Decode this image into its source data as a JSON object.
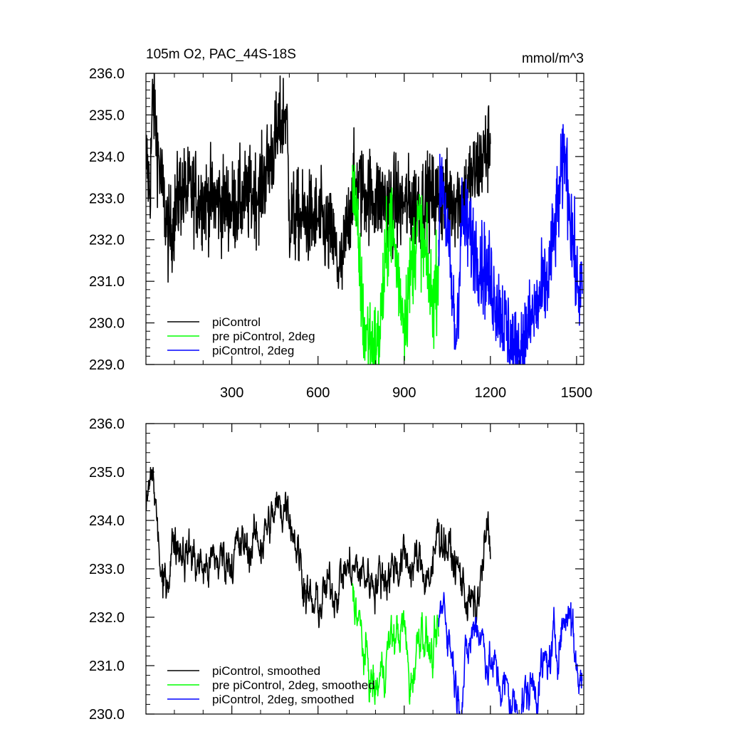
{
  "figure": {
    "title_left": "105m O2, PAC_44S-18S",
    "title_right": "mmol/m^3"
  },
  "chart_data": [
    {
      "type": "line",
      "panel": "top",
      "xlim": [
        1,
        1525
      ],
      "ylim": [
        229.0,
        236.0
      ],
      "xticks": [
        300,
        600,
        900,
        1200,
        1500
      ],
      "yticks": [
        229.0,
        230.0,
        231.0,
        232.0,
        233.0,
        234.0,
        235.0,
        236.0
      ],
      "ytick_labels": [
        "229.0",
        "230.0",
        "231.0",
        "232.0",
        "233.0",
        "234.0",
        "235.0",
        "236.0"
      ],
      "xtick_labels": [
        "300",
        "600",
        "900",
        "1200",
        "1500"
      ],
      "grid": false,
      "legend_position": "bottom-left",
      "series": [
        {
          "name": "piControl",
          "color": "#000000",
          "x_range": [
            1,
            1200
          ],
          "key_values": [
            [
              1,
              234.0
            ],
            [
              15,
              233.2
            ],
            [
              25,
              235.5
            ],
            [
              50,
              233.6
            ],
            [
              80,
              232.0
            ],
            [
              120,
              233.2
            ],
            [
              200,
              233.0
            ],
            [
              300,
              232.8
            ],
            [
              400,
              233.2
            ],
            [
              490,
              235.2
            ],
            [
              500,
              232.5
            ],
            [
              600,
              232.5
            ],
            [
              650,
              232.0
            ],
            [
              680,
              231.1
            ],
            [
              720,
              233.3
            ],
            [
              800,
              233.0
            ],
            [
              900,
              232.8
            ],
            [
              1000,
              233.0
            ],
            [
              1100,
              233.0
            ],
            [
              1200,
              234.3
            ]
          ]
        },
        {
          "name": "pre piControl, 2deg",
          "color": "#00ff00",
          "x_range": [
            720,
            1020
          ],
          "key_values": [
            [
              720,
              233.8
            ],
            [
              740,
              231.8
            ],
            [
              760,
              229.8
            ],
            [
              810,
              229.4
            ],
            [
              850,
              232.6
            ],
            [
              900,
              230.1
            ],
            [
              950,
              232.5
            ],
            [
              1000,
              230.4
            ],
            [
              1020,
              231.6
            ]
          ]
        },
        {
          "name": "piControl, 2deg",
          "color": "#0000ff",
          "x_range": [
            1020,
            1520
          ],
          "key_values": [
            [
              1020,
              232.0
            ],
            [
              1030,
              233.8
            ],
            [
              1080,
              229.5
            ],
            [
              1100,
              232.5
            ],
            [
              1200,
              231.0
            ],
            [
              1290,
              229.2
            ],
            [
              1400,
              231.0
            ],
            [
              1460,
              234.1
            ],
            [
              1500,
              231.0
            ],
            [
              1520,
              230.7
            ]
          ]
        }
      ]
    },
    {
      "type": "line",
      "panel": "bottom",
      "xlim": [
        1,
        1525
      ],
      "ylim": [
        230.0,
        236.0
      ],
      "yticks": [
        230.0,
        231.0,
        232.0,
        233.0,
        234.0,
        235.0,
        236.0
      ],
      "ytick_labels": [
        "230.0",
        "231.0",
        "232.0",
        "233.0",
        "234.0",
        "235.0",
        "236.0"
      ],
      "grid": false,
      "legend_position": "bottom-left",
      "series": [
        {
          "name": "piControl, smoothed",
          "color": "#000000",
          "x_range": [
            1,
            1200
          ],
          "key_values": [
            [
              1,
              234.2
            ],
            [
              25,
              235.0
            ],
            [
              60,
              232.4
            ],
            [
              100,
              233.7
            ],
            [
              200,
              233.0
            ],
            [
              300,
              233.3
            ],
            [
              400,
              233.6
            ],
            [
              495,
              234.5
            ],
            [
              550,
              232.8
            ],
            [
              580,
              232.1
            ],
            [
              700,
              233.0
            ],
            [
              800,
              232.8
            ],
            [
              900,
              233.2
            ],
            [
              1000,
              232.9
            ],
            [
              1020,
              233.9
            ],
            [
              1150,
              232.0
            ],
            [
              1190,
              233.8
            ],
            [
              1200,
              233.2
            ]
          ]
        },
        {
          "name": "pre piControl, 2deg, smoothed",
          "color": "#00ff00",
          "x_range": [
            720,
            1020
          ],
          "key_values": [
            [
              720,
              232.7
            ],
            [
              760,
              231.2
            ],
            [
              800,
              230.4
            ],
            [
              850,
              231.5
            ],
            [
              900,
              231.8
            ],
            [
              920,
              230.5
            ],
            [
              960,
              232.0
            ],
            [
              1000,
              231.0
            ],
            [
              1020,
              231.6
            ]
          ]
        },
        {
          "name": "piControl, 2deg, smoothed",
          "color": "#0000ff",
          "x_range": [
            1020,
            1520
          ],
          "key_values": [
            [
              1020,
              231.8
            ],
            [
              1040,
              232.3
            ],
            [
              1090,
              230.3
            ],
            [
              1150,
              232.0
            ],
            [
              1200,
              231.0
            ],
            [
              1290,
              230.1
            ],
            [
              1400,
              231.0
            ],
            [
              1480,
              232.3
            ],
            [
              1500,
              230.9
            ],
            [
              1520,
              230.7
            ]
          ]
        }
      ]
    }
  ]
}
